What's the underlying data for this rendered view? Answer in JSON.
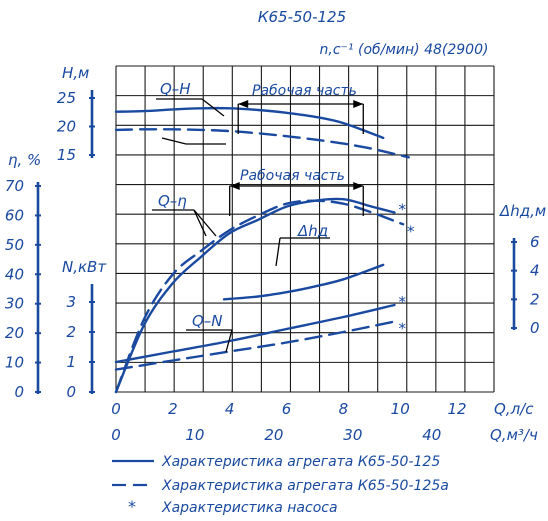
{
  "chart_data": {
    "type": "line",
    "title": "К65-50-125",
    "subtitle": "n,c⁻¹ (об/мин) 48(2900)",
    "colors": {
      "ink": "#1a4aa0",
      "grid": "#1a1a1a"
    },
    "grid": true,
    "xlabel_q_ls": "Q,л/с",
    "xlabel_q_m3h": "Q,м³/ч",
    "x_q_ls": {
      "range": [
        0,
        13.3
      ],
      "ticks": [
        "0",
        "2",
        "4",
        "6",
        "8",
        "10",
        "12"
      ]
    },
    "x_q_m3h": {
      "range": [
        0,
        48
      ],
      "ticks": [
        "0",
        "10",
        "20",
        "30",
        "40"
      ]
    },
    "axes": {
      "head": {
        "label": "H,м",
        "range": [
          15,
          25
        ],
        "ticks": [
          "15",
          "20",
          "25"
        ]
      },
      "efficiency": {
        "label": "η, %",
        "range": [
          0,
          70
        ],
        "ticks": [
          "0",
          "10",
          "20",
          "30",
          "40",
          "50",
          "60",
          "70"
        ]
      },
      "power": {
        "label": "N,кВт",
        "range": [
          0,
          3
        ],
        "ticks": [
          "0",
          "1",
          "2",
          "3"
        ]
      },
      "npsh": {
        "label": "Δhд,м",
        "range": [
          0,
          6
        ],
        "ticks": [
          "0",
          "2",
          "4",
          "6"
        ]
      }
    },
    "labels": {
      "qh": "Q–H",
      "qeta": "Q–η",
      "qn": "Q–N",
      "npsh": "Δhд",
      "working_range_1": "Рабочая часть",
      "working_range_2": "Рабочая часть"
    },
    "working_range_1": [
      4.3,
      8.7
    ],
    "working_range_2": [
      4.0,
      8.7
    ],
    "pump_marks": [
      "*",
      "*",
      "*",
      "*"
    ],
    "series": [
      {
        "name": "Характеристика агрегата К65-50-125",
        "axis": "head",
        "dash": false,
        "x": [
          0,
          1,
          2,
          3,
          4,
          5,
          6,
          7,
          8,
          9.4
        ],
        "y": [
          22.6,
          22.7,
          23.0,
          23.2,
          23.2,
          22.9,
          22.4,
          21.7,
          20.6,
          18.0
        ]
      },
      {
        "name": "Характеристика агрегата К65-50-125а",
        "axis": "head",
        "dash": true,
        "x": [
          0,
          1,
          2,
          3,
          4,
          5,
          6,
          7,
          8,
          9,
          10.3
        ],
        "y": [
          19.4,
          19.5,
          19.5,
          19.4,
          19.2,
          18.8,
          18.3,
          17.7,
          17.0,
          16.1,
          14.6
        ]
      },
      {
        "name": "Характеристика агрегата К65-50-125",
        "axis": "efficiency",
        "dash": false,
        "x": [
          0,
          1,
          2,
          3,
          4,
          5,
          6,
          7,
          8,
          9,
          9.8
        ],
        "y": [
          0,
          23,
          37,
          46,
          54,
          58.5,
          63,
          65,
          65.5,
          63,
          61
        ]
      },
      {
        "name": "Характеристика агрегата К65-50-125а",
        "axis": "efficiency",
        "dash": true,
        "x": [
          0,
          1,
          2,
          3,
          4,
          5,
          6,
          7,
          8,
          9,
          10.1
        ],
        "y": [
          0,
          25,
          40,
          48,
          55,
          60,
          64,
          65,
          64,
          61,
          57
        ]
      },
      {
        "name": "Характеристика агрегата К65-50-125",
        "axis": "npsh",
        "dash": false,
        "x": [
          3.8,
          5,
          6,
          7,
          8,
          9.4
        ],
        "y": [
          2.0,
          2.2,
          2.5,
          2.9,
          3.4,
          4.4
        ]
      },
      {
        "name": "Характеристика агрегата К65-50-125",
        "axis": "power",
        "dash": false,
        "x": [
          0,
          2,
          4,
          6,
          8,
          9.8
        ],
        "y": [
          1.0,
          1.35,
          1.7,
          2.1,
          2.5,
          2.9
        ]
      },
      {
        "name": "Характеристика агрегата К65-50-125а",
        "axis": "power",
        "dash": true,
        "x": [
          0,
          2,
          4,
          6,
          8,
          9.8
        ],
        "y": [
          0.75,
          1.05,
          1.35,
          1.65,
          2.0,
          2.35
        ]
      }
    ],
    "legend": {
      "position": "bottom",
      "items": [
        {
          "style": "solid",
          "text": "Характеристика агрегата К65-50-125"
        },
        {
          "style": "dashed",
          "text": "Характеристика агрегата К65-50-125а"
        },
        {
          "style": "star",
          "symbol": "*",
          "text": "Характеристика насоса"
        }
      ]
    }
  }
}
